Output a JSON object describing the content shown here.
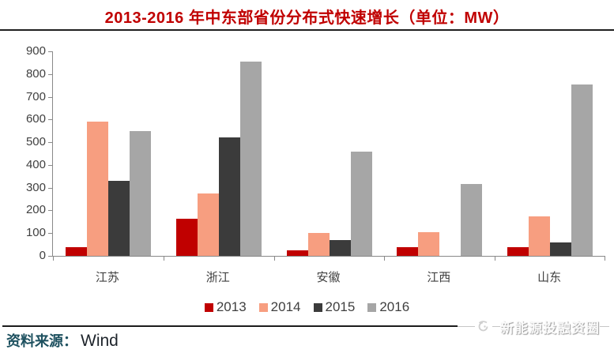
{
  "title": "2013-2016 年中东部省份分布式快速增长（单位：MW）",
  "chart_data": {
    "type": "bar",
    "title": "2013-2016 年中东部省份分布式快速增长（单位：MW）",
    "categories": [
      "江苏",
      "浙江",
      "安徽",
      "江西",
      "山东"
    ],
    "series": [
      {
        "name": "2013",
        "color": "#C00000",
        "values": [
          40,
          165,
          25,
          40,
          40
        ]
      },
      {
        "name": "2014",
        "color": "#F79E80",
        "values": [
          590,
          275,
          100,
          105,
          175
        ]
      },
      {
        "name": "2015",
        "color": "#3B3B3B",
        "values": [
          330,
          520,
          70,
          0,
          60
        ]
      },
      {
        "name": "2016",
        "color": "#A6A6A6",
        "values": [
          550,
          855,
          460,
          315,
          755
        ]
      }
    ],
    "ylim": [
      0,
      900
    ],
    "yticks": [
      0,
      100,
      200,
      300,
      400,
      500,
      600,
      700,
      800,
      900
    ],
    "xlabel": "",
    "ylabel": "",
    "grid": false,
    "legend_position": "bottom"
  },
  "footer": {
    "source_label": "资料来源：",
    "source_value": "Wind"
  },
  "watermark": {
    "text": "新能源投融资圈"
  },
  "colors": {
    "title": "#C00000",
    "axis": "#898989",
    "tick_label": "#404040"
  }
}
